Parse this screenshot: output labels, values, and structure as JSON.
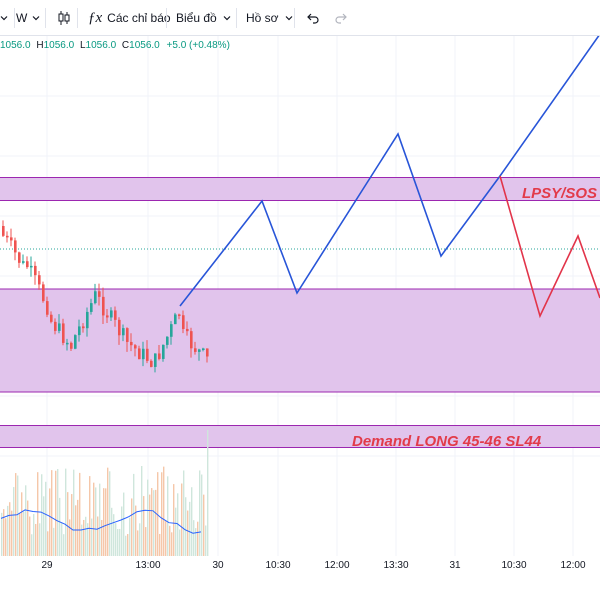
{
  "toolbar": {
    "interval": "W",
    "indicators": "Các chỉ báo",
    "chart_type": "Biểu đồ",
    "profile": "Hồ sơ"
  },
  "ohlc": {
    "open": "1056.0",
    "high": "1056.0",
    "low": "1056.0",
    "close": "1056.0",
    "change": "+5.0 (+0.48%)",
    "label_h": "H",
    "label_l": "L",
    "label_c": "C"
  },
  "zones": {
    "lpsy": "LPSY/SOS",
    "demand": "Demand LONG 45-46 SL44"
  },
  "time_axis": [
    "29",
    "13:00",
    "30",
    "10:30",
    "12:00",
    "13:30",
    "31",
    "10:30",
    "12:00"
  ],
  "colors": {
    "zone_fill": "#e1c4ec",
    "zone_border": "#9c27b0",
    "projection_blue": "#2855d8",
    "projection_red": "#e2344a",
    "candle_up": "#26a69a",
    "candle_down": "#ef5350",
    "label_red": "#e23b4a",
    "volume_line": "#2962ff"
  },
  "chart_data": {
    "type": "candlestick",
    "zones": [
      {
        "label": "LPSY/SOS"
      },
      {
        "label": ""
      },
      {
        "label": "Demand LONG 45-46 SL44"
      }
    ]
  }
}
